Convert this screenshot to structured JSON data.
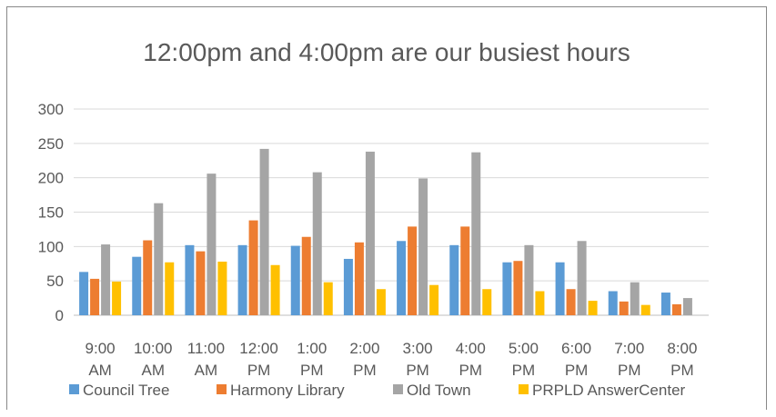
{
  "chart_data": {
    "type": "bar",
    "title": "12:00pm and 4:00pm are our busiest hours",
    "xlabel": "",
    "ylabel": "",
    "ylim": [
      0,
      300
    ],
    "yticks": [
      0,
      50,
      100,
      150,
      200,
      250,
      300
    ],
    "grid": true,
    "legend_position": "bottom",
    "categories": [
      [
        "9:00",
        "AM"
      ],
      [
        "10:00",
        "AM"
      ],
      [
        "11:00",
        "AM"
      ],
      [
        "12:00",
        "PM"
      ],
      [
        "1:00",
        "PM"
      ],
      [
        "2:00",
        "PM"
      ],
      [
        "3:00",
        "PM"
      ],
      [
        "4:00",
        "PM"
      ],
      [
        "5:00",
        "PM"
      ],
      [
        "6:00",
        "PM"
      ],
      [
        "7:00",
        "PM"
      ],
      [
        "8:00",
        "PM"
      ]
    ],
    "series": [
      {
        "name": "Council Tree",
        "color": "#5b9bd5",
        "values": [
          63,
          85,
          102,
          102,
          101,
          82,
          108,
          102,
          77,
          77,
          35,
          33
        ]
      },
      {
        "name": "Harmony Library",
        "color": "#ed7d31",
        "values": [
          53,
          109,
          93,
          138,
          114,
          106,
          129,
          129,
          79,
          38,
          20,
          16
        ]
      },
      {
        "name": "Old Town",
        "color": "#a5a5a5",
        "values": [
          103,
          163,
          206,
          242,
          208,
          238,
          199,
          237,
          102,
          108,
          48,
          25
        ]
      },
      {
        "name": "PRPLD AnswerCenter",
        "color": "#ffc000",
        "values": [
          49,
          77,
          78,
          73,
          48,
          38,
          44,
          38,
          35,
          21,
          15,
          0
        ]
      }
    ]
  }
}
